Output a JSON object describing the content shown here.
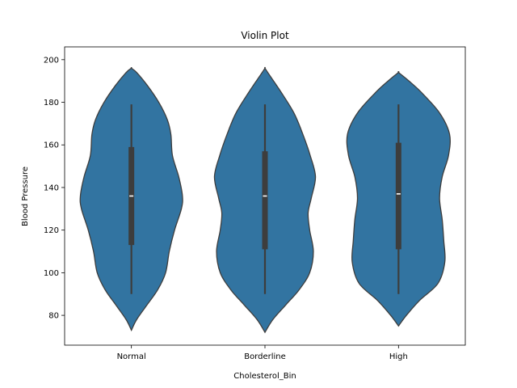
{
  "chart_data": {
    "type": "violin",
    "title": "Violin Plot",
    "xlabel": "Cholesterol_Bin",
    "ylabel": "Blood Pressure",
    "categories": [
      "Normal",
      "Borderline",
      "High"
    ],
    "ylim": [
      66,
      206
    ],
    "yticks": [
      80,
      100,
      120,
      140,
      160,
      180,
      200
    ],
    "grid": false,
    "fill_color": "#3274a1",
    "edge_color": "#3d3d3d",
    "box_color": "#3d3d3d",
    "median_color": "#ffffff",
    "violins": [
      {
        "category": "Normal",
        "whisker_low": 90,
        "q1": 113,
        "median": 136,
        "q3": 159,
        "whisker_high": 179,
        "profile": [
          [
            73,
            0.0
          ],
          [
            78,
            0.1
          ],
          [
            85,
            0.3
          ],
          [
            92,
            0.5
          ],
          [
            100,
            0.65
          ],
          [
            110,
            0.72
          ],
          [
            120,
            0.82
          ],
          [
            130,
            0.95
          ],
          [
            136,
            0.97
          ],
          [
            145,
            0.9
          ],
          [
            155,
            0.78
          ],
          [
            165,
            0.75
          ],
          [
            172,
            0.68
          ],
          [
            180,
            0.52
          ],
          [
            188,
            0.3
          ],
          [
            194,
            0.1
          ],
          [
            196,
            0.0
          ]
        ]
      },
      {
        "category": "Borderline",
        "whisker_low": 90,
        "q1": 111,
        "median": 136,
        "q3": 157,
        "whisker_high": 179,
        "profile": [
          [
            72,
            0.0
          ],
          [
            78,
            0.15
          ],
          [
            85,
            0.4
          ],
          [
            92,
            0.65
          ],
          [
            100,
            0.85
          ],
          [
            110,
            0.92
          ],
          [
            120,
            0.85
          ],
          [
            128,
            0.82
          ],
          [
            135,
            0.88
          ],
          [
            145,
            0.96
          ],
          [
            155,
            0.86
          ],
          [
            165,
            0.72
          ],
          [
            175,
            0.55
          ],
          [
            185,
            0.3
          ],
          [
            193,
            0.08
          ],
          [
            196,
            0.0
          ]
        ]
      },
      {
        "category": "High",
        "whisker_low": 90,
        "q1": 111,
        "median": 137,
        "q3": 161,
        "whisker_high": 179,
        "profile": [
          [
            75,
            0.0
          ],
          [
            80,
            0.15
          ],
          [
            87,
            0.4
          ],
          [
            95,
            0.75
          ],
          [
            105,
            0.88
          ],
          [
            115,
            0.86
          ],
          [
            125,
            0.83
          ],
          [
            135,
            0.78
          ],
          [
            145,
            0.83
          ],
          [
            155,
            0.95
          ],
          [
            165,
            0.97
          ],
          [
            175,
            0.78
          ],
          [
            185,
            0.42
          ],
          [
            191,
            0.15
          ],
          [
            194,
            0.0
          ]
        ]
      }
    ]
  }
}
